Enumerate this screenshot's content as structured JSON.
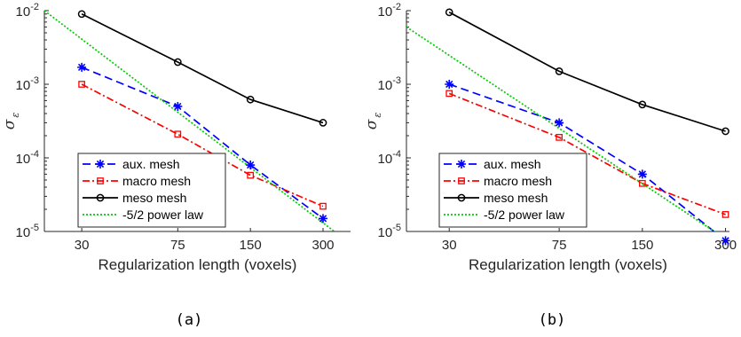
{
  "figure": {
    "captions": [
      "(a)",
      "(b)"
    ]
  },
  "chart_data": [
    {
      "type": "line",
      "panel": "(a)",
      "xscale": "log",
      "yscale": "log",
      "xlim": [
        21,
        390
      ],
      "ylim": [
        1e-05,
        0.01
      ],
      "xticks": [
        30,
        75,
        150,
        300
      ],
      "xticklabels": [
        "30",
        "75",
        "150",
        "300"
      ],
      "yticks": [
        1e-05,
        0.0001,
        0.001,
        0.01
      ],
      "yticklabels": [
        [
          "10",
          "-5"
        ],
        [
          "10",
          "-4"
        ],
        [
          "10",
          "-3"
        ],
        [
          "10",
          "-2"
        ]
      ],
      "xlabel": "Regularization length (voxels)",
      "ylabel": [
        "σ",
        "ε"
      ],
      "legend_position": "bottom-left",
      "grid": false,
      "series": [
        {
          "name": "aux. mesh",
          "color": "#0000ff",
          "dash": "9,5",
          "marker": "star",
          "x": [
            30,
            75,
            150,
            300
          ],
          "y": [
            0.0017,
            0.0005,
            8e-05,
            1.5e-05
          ]
        },
        {
          "name": "macro mesh",
          "color": "#ff0000",
          "dash": "8,3,2,3",
          "marker": "square",
          "x": [
            30,
            75,
            150,
            300
          ],
          "y": [
            0.001,
            0.00021,
            5.8e-05,
            2.2e-05
          ]
        },
        {
          "name": "meso mesh",
          "color": "#000000",
          "dash": "",
          "marker": "circle",
          "x": [
            30,
            75,
            150,
            300
          ],
          "y": [
            0.009,
            0.002,
            0.00062,
            0.0003
          ]
        },
        {
          "name": "-5/2 power law",
          "color": "#00cc00",
          "dash": "2,2",
          "marker": "none",
          "x": [
            21,
            390
          ],
          "y": [
            0.01,
            6.8e-06
          ]
        }
      ]
    },
    {
      "type": "line",
      "panel": "(b)",
      "xscale": "log",
      "yscale": "log",
      "xlim": [
        21,
        310
      ],
      "ylim": [
        1e-05,
        0.01
      ],
      "xticks": [
        30,
        75,
        150,
        300
      ],
      "xticklabels": [
        "30",
        "75",
        "150",
        "300"
      ],
      "yticks": [
        1e-05,
        0.0001,
        0.001,
        0.01
      ],
      "yticklabels": [
        [
          "10",
          "-5"
        ],
        [
          "10",
          "-4"
        ],
        [
          "10",
          "-3"
        ],
        [
          "10",
          "-2"
        ]
      ],
      "xlabel": "Regularization length (voxels)",
      "ylabel": [
        "σ",
        "ε"
      ],
      "legend_position": "bottom-left",
      "grid": false,
      "series": [
        {
          "name": "aux. mesh",
          "color": "#0000ff",
          "dash": "9,5",
          "marker": "star",
          "x": [
            30,
            75,
            150,
            300
          ],
          "y": [
            0.001,
            0.0003,
            6e-05,
            7.5e-06
          ]
        },
        {
          "name": "macro mesh",
          "color": "#ff0000",
          "dash": "8,3,2,3",
          "marker": "square",
          "x": [
            30,
            75,
            150,
            300
          ],
          "y": [
            0.00075,
            0.00019,
            4.5e-05,
            1.7e-05
          ]
        },
        {
          "name": "meso mesh",
          "color": "#000000",
          "dash": "",
          "marker": "circle",
          "x": [
            30,
            75,
            150,
            300
          ],
          "y": [
            0.0095,
            0.0015,
            0.00053,
            0.00023
          ]
        },
        {
          "name": "-5/2 power law",
          "color": "#00cc00",
          "dash": "2,2",
          "marker": "none",
          "x": [
            21,
            310
          ],
          "y": [
            0.006,
            7.3e-06
          ]
        }
      ]
    }
  ]
}
